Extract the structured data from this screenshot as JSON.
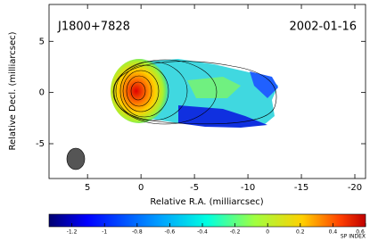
{
  "chart_data": {
    "type": "image",
    "source": "J1800+7828",
    "date": "2002-01-16",
    "x_label": "Relative R.A. (milliarcsec)",
    "y_label": "Relative Decl. (milliarcsec)",
    "xlim": [
      8.6,
      -21
    ],
    "ylim": [
      -8.4,
      8.6
    ],
    "xticks": [
      5,
      0,
      -5,
      -10,
      -15,
      -20
    ],
    "yticks": [
      -5,
      0,
      5
    ],
    "colorbar": {
      "label": "SP INDEX",
      "lim": [
        -1.34,
        0.6
      ],
      "ticks": [
        -1.2,
        -1,
        -0.8,
        -0.6,
        -0.4,
        -0.2,
        0,
        0.2,
        0.4,
        0.6
      ]
    }
  }
}
